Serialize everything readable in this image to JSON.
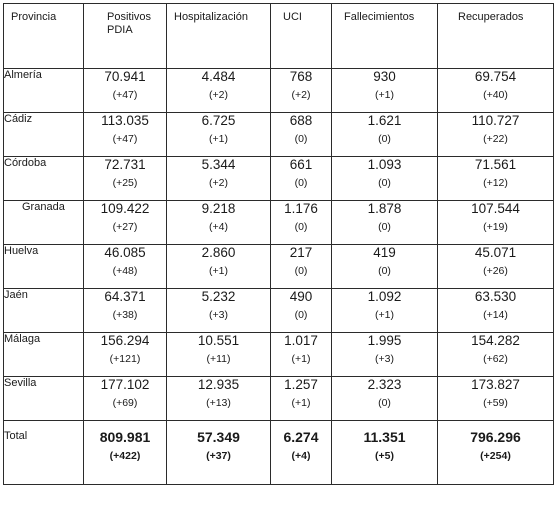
{
  "headers": {
    "provincia": "Provincia",
    "positivos_line1": "Positivos",
    "positivos_line2": "PDIA",
    "hospitalizacion": "Hospitalización",
    "uci": "UCI",
    "fallecimientos": "Fallecimientos",
    "recuperados": "Recuperados"
  },
  "rows": [
    {
      "provincia": "Almería",
      "positivos": "70.941",
      "positivos_delta": "(+47)",
      "hosp": "4.484",
      "hosp_delta": "(+2)",
      "uci": "768",
      "uci_delta": "(+2)",
      "fall": "930",
      "fall_delta": "(+1)",
      "recu": "69.754",
      "recu_delta": "(+40)"
    },
    {
      "provincia": "Cádiz",
      "positivos": "113.035",
      "positivos_delta": "(+47)",
      "hosp": "6.725",
      "hosp_delta": "(+1)",
      "uci": "688",
      "uci_delta": "(0)",
      "fall": "1.621",
      "fall_delta": "(0)",
      "recu": "110.727",
      "recu_delta": "(+22)"
    },
    {
      "provincia": "Córdoba",
      "positivos": "72.731",
      "positivos_delta": "(+25)",
      "hosp": "5.344",
      "hosp_delta": "(+2)",
      "uci": "661",
      "uci_delta": "(0)",
      "fall": "1.093",
      "fall_delta": "(0)",
      "recu": "71.561",
      "recu_delta": "(+12)"
    },
    {
      "provincia": "Granada",
      "positivos": "109.422",
      "positivos_delta": "(+27)",
      "hosp": "9.218",
      "hosp_delta": "(+4)",
      "uci": "1.176",
      "uci_delta": "(0)",
      "fall": "1.878",
      "fall_delta": "(0)",
      "recu": "107.544",
      "recu_delta": "(+19)"
    },
    {
      "provincia": "Huelva",
      "positivos": "46.085",
      "positivos_delta": "(+48)",
      "hosp": "2.860",
      "hosp_delta": "(+1)",
      "uci": "217",
      "uci_delta": "(0)",
      "fall": "419",
      "fall_delta": "(0)",
      "recu": "45.071",
      "recu_delta": "(+26)"
    },
    {
      "provincia": "Jaén",
      "positivos": "64.371",
      "positivos_delta": "(+38)",
      "hosp": "5.232",
      "hosp_delta": "(+3)",
      "uci": "490",
      "uci_delta": "(0)",
      "fall": "1.092",
      "fall_delta": "(+1)",
      "recu": "63.530",
      "recu_delta": "(+14)"
    },
    {
      "provincia": "Málaga",
      "positivos": "156.294",
      "positivos_delta": "(+121)",
      "hosp": "10.551",
      "hosp_delta": "(+11)",
      "uci": "1.017",
      "uci_delta": "(+1)",
      "fall": "1.995",
      "fall_delta": "(+3)",
      "recu": "154.282",
      "recu_delta": "(+62)"
    },
    {
      "provincia": "Sevilla",
      "positivos": "177.102",
      "positivos_delta": "(+69)",
      "hosp": "12.935",
      "hosp_delta": "(+13)",
      "uci": "1.257",
      "uci_delta": "(+1)",
      "fall": "2.323",
      "fall_delta": "(0)",
      "recu": "173.827",
      "recu_delta": "(+59)"
    }
  ],
  "total": {
    "provincia": "Total",
    "positivos": "809.981",
    "positivos_delta": "(+422)",
    "hosp": "57.349",
    "hosp_delta": "(+37)",
    "uci": "6.274",
    "uci_delta": "(+4)",
    "fall": "11.351",
    "fall_delta": "(+5)",
    "recu": "796.296",
    "recu_delta": "(+254)"
  }
}
